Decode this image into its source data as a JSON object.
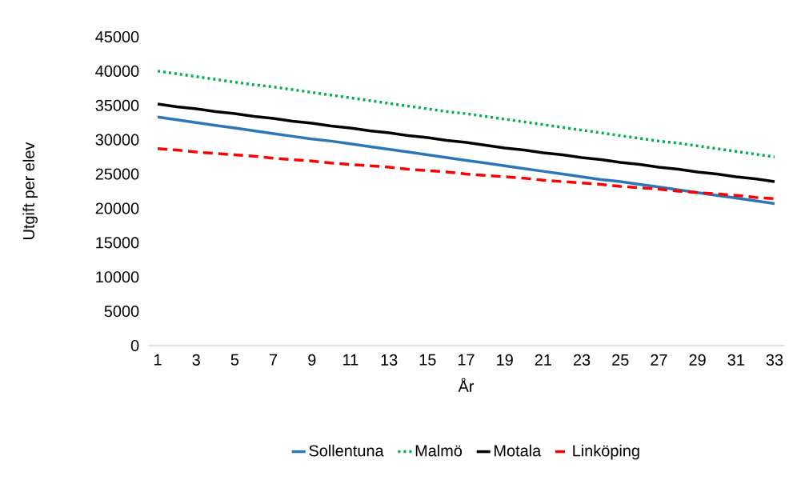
{
  "chart_data": {
    "type": "line",
    "xlabel": "År",
    "ylabel": "Utgift per elev",
    "categories": [
      "1",
      null,
      "3",
      null,
      "5",
      null,
      "7",
      null,
      "9",
      null,
      "11",
      null,
      "13",
      null,
      "15",
      null,
      "17",
      null,
      "19",
      null,
      "21",
      null,
      "23",
      null,
      "25",
      null,
      "27",
      null,
      "29",
      null,
      "31",
      null,
      "33"
    ],
    "ylim": [
      0,
      45000
    ],
    "yticks": [
      0,
      5000,
      10000,
      15000,
      20000,
      25000,
      30000,
      35000,
      40000,
      45000
    ],
    "legend": "bottom",
    "marker": "none",
    "series": [
      {
        "name": "Sollentuna",
        "color": "#2e75b6",
        "line_style": "solid",
        "values": [
          33300,
          32900,
          32500,
          32100,
          31700,
          31300,
          30900,
          30500,
          30100,
          29800,
          29400,
          29000,
          28600,
          28200,
          27800,
          27400,
          27000,
          26600,
          26200,
          25800,
          25400,
          25000,
          24600,
          24200,
          23900,
          23500,
          23100,
          22700,
          22300,
          21900,
          21500,
          21100,
          20700
        ]
      },
      {
        "name": "Malmö",
        "color": "#00b050",
        "line_style": "dotted",
        "values": [
          40000,
          39600,
          39200,
          38800,
          38400,
          38000,
          37700,
          37300,
          36900,
          36500,
          36100,
          35700,
          35300,
          34900,
          34500,
          34100,
          33800,
          33400,
          33000,
          32600,
          32200,
          31800,
          31400,
          31000,
          30600,
          30200,
          29800,
          29500,
          29100,
          28700,
          28300,
          27900,
          27500
        ]
      },
      {
        "name": "Motala",
        "color": "#000000",
        "line_style": "solid",
        "values": [
          35200,
          34800,
          34500,
          34100,
          33800,
          33400,
          33100,
          32700,
          32400,
          32000,
          31700,
          31300,
          31000,
          30600,
          30300,
          29900,
          29600,
          29200,
          28800,
          28500,
          28100,
          27800,
          27400,
          27100,
          26700,
          26400,
          26000,
          25700,
          25300,
          25000,
          24600,
          24300,
          23900
        ]
      },
      {
        "name": "Linköping",
        "color": "#ff0000",
        "line_style": "dashed",
        "values": [
          28700,
          28500,
          28200,
          28000,
          27800,
          27600,
          27300,
          27100,
          26900,
          26600,
          26400,
          26200,
          26000,
          25700,
          25500,
          25300,
          25000,
          24800,
          24600,
          24400,
          24100,
          23900,
          23700,
          23500,
          23200,
          23000,
          22800,
          22500,
          22300,
          22100,
          21900,
          21600,
          21400
        ]
      }
    ]
  }
}
